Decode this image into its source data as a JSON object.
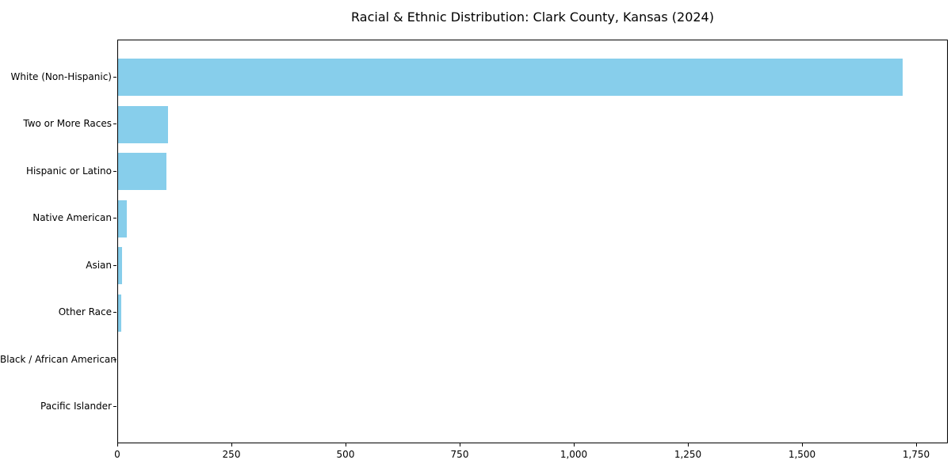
{
  "figure": {
    "background": "#ffffff",
    "axis_color": "#000000",
    "text_color": "#000000"
  },
  "chart_data": {
    "type": "bar",
    "orientation": "horizontal",
    "title": "Racial & Ethnic Distribution: Clark County, Kansas (2024)",
    "xlabel": "",
    "ylabel": "",
    "categories": [
      "White (Non-Hispanic)",
      "Two or More Races",
      "Hispanic or Latino",
      "Native American",
      "Asian",
      "Other Race",
      "Black / African American",
      "Pacific Islander"
    ],
    "values": [
      1720,
      110,
      106,
      19,
      8,
      7,
      0,
      0
    ],
    "xlim": [
      0,
      1820
    ],
    "x_ticks": [
      0,
      250,
      500,
      750,
      1000,
      1250,
      1500,
      1750
    ],
    "x_tick_labels": [
      "0",
      "250",
      "500",
      "750",
      "1,000",
      "1,250",
      "1,500",
      "1,750"
    ],
    "bar_color": "#87CEEB",
    "grid": false,
    "legend": null
  }
}
